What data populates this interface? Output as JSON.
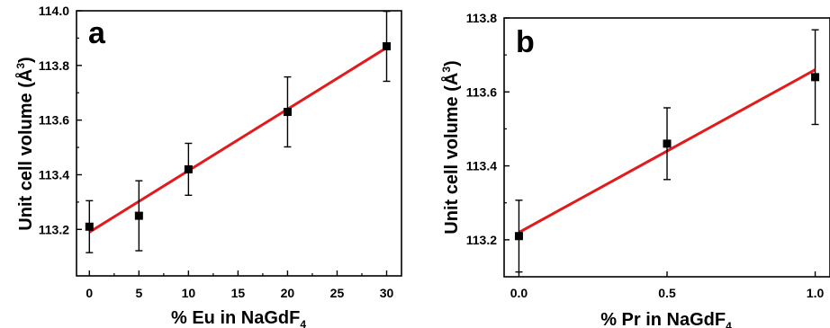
{
  "chart_data": [
    {
      "type": "scatter",
      "panel_label": "a",
      "x": [
        0,
        5,
        10,
        20,
        30
      ],
      "y": [
        113.21,
        113.25,
        113.42,
        113.63,
        113.87
      ],
      "err": [
        0.095,
        0.128,
        0.095,
        0.128,
        0.128
      ],
      "fit_line": {
        "x": [
          0,
          30
        ],
        "y": [
          113.19,
          113.865
        ],
        "color": "#e31a1c"
      },
      "xlim": [
        -1.3,
        31.5
      ],
      "ylim": [
        113.03,
        114.0
      ],
      "xticks": [
        0,
        5,
        10,
        15,
        20,
        25,
        30
      ],
      "xtick_labels": [
        "0",
        "5",
        "10",
        "15",
        "20",
        "25",
        "30"
      ],
      "yticks": [
        113.2,
        113.4,
        113.6,
        113.8,
        114.0
      ],
      "ytick_labels": [
        "113.2",
        "113.4",
        "113.6",
        "113.8",
        "114.0"
      ],
      "xlabel": {
        "main": "% Eu in NaGdF",
        "sub": "4"
      },
      "ylabel": {
        "main": "Unit cell volume (Å",
        "sup": "3",
        "end": ")"
      },
      "grid": false
    },
    {
      "type": "scatter",
      "panel_label": "b",
      "x": [
        0.0,
        0.5,
        1.0
      ],
      "y": [
        113.21,
        113.46,
        113.64
      ],
      "err": [
        0.097,
        0.097,
        0.128
      ],
      "fit_line": {
        "x": [
          0.0,
          1.0
        ],
        "y": [
          113.22,
          113.66
        ],
        "color": "#e31a1c"
      },
      "xlim": [
        -0.05,
        1.05
      ],
      "ylim": [
        113.1,
        113.8
      ],
      "xticks": [
        0.0,
        0.5,
        1.0
      ],
      "xtick_labels": [
        "0.0",
        "0.5",
        "1.0"
      ],
      "yticks": [
        113.2,
        113.4,
        113.6,
        113.8
      ],
      "ytick_labels": [
        "113.2",
        "113.4",
        "113.6",
        "113.8"
      ],
      "xlabel": {
        "main": "% Pr in NaGdF",
        "sub": "4"
      },
      "ylabel": {
        "main": "Unit cell volume (Å",
        "sup": "3",
        "end": ")"
      },
      "grid": false
    }
  ]
}
